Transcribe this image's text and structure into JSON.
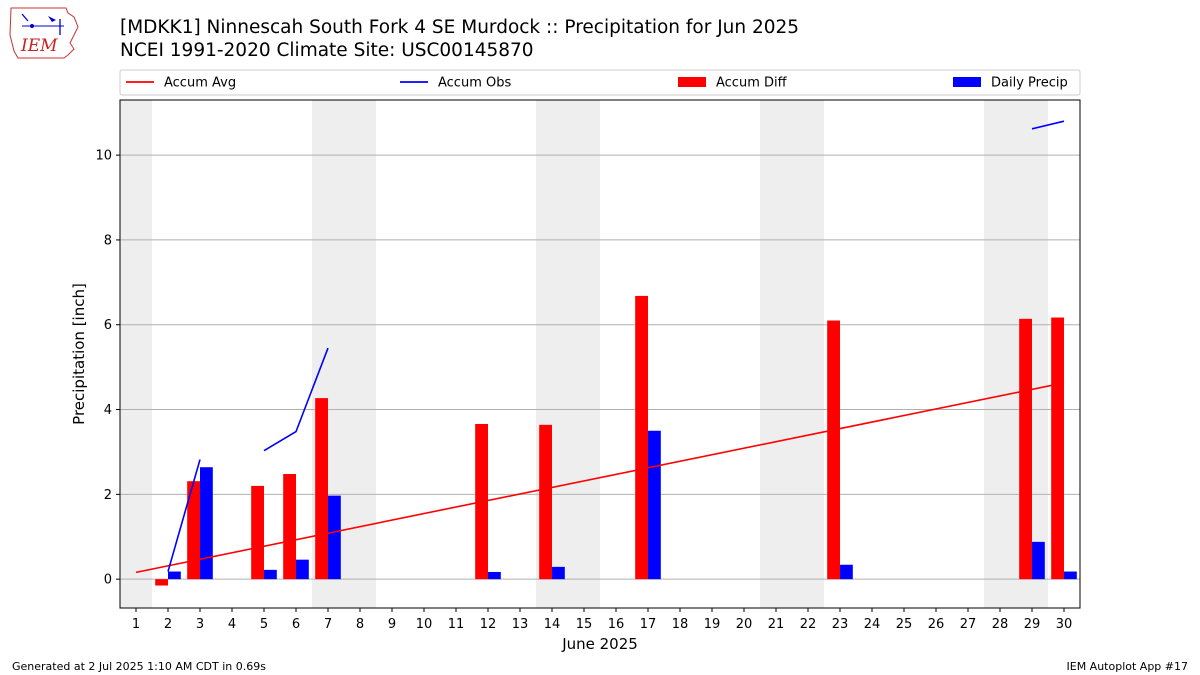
{
  "header": {
    "title_line1": "[MDKK1] Ninnescah South Fork 4 SE Murdock :: Precipitation for Jun 2025",
    "title_line2": "NCEI 1991-2020 Climate Site: USC00145870",
    "logo_text": "IEM"
  },
  "footer": {
    "left": "Generated at 2 Jul 2025 1:10 AM CDT in 0.69s",
    "right": "IEM Autoplot App #17"
  },
  "colors": {
    "avg": "#ff0000",
    "obs": "#0000ff",
    "diff": "#ff0000",
    "daily": "#0000ff",
    "weekend_band": "#eeeeee",
    "grid": "#b0b0b0"
  },
  "chart_data": {
    "type": "bar",
    "xlabel": "June 2025",
    "ylabel": "Precipitation [inch]",
    "xlim": [
      0.5,
      30.5
    ],
    "ylim": [
      -0.68,
      11.3
    ],
    "yticks": [
      0,
      2,
      4,
      6,
      8,
      10
    ],
    "days": [
      1,
      2,
      3,
      4,
      5,
      6,
      7,
      8,
      9,
      10,
      11,
      12,
      13,
      14,
      15,
      16,
      17,
      18,
      19,
      20,
      21,
      22,
      23,
      24,
      25,
      26,
      27,
      28,
      29,
      30
    ],
    "grid": "horizontal",
    "legend_position": "top",
    "weekend_bands": [
      [
        0.5,
        1.5
      ],
      [
        6.5,
        8.5
      ],
      [
        13.5,
        15.5
      ],
      [
        20.5,
        22.5
      ],
      [
        27.5,
        29.5
      ]
    ],
    "series": [
      {
        "name": "Accum Avg",
        "type": "line",
        "x": [
          1,
          30
        ],
        "values": [
          0.16,
          4.63
        ]
      },
      {
        "name": "Accum Obs",
        "type": "line",
        "segments": [
          [
            [
              2,
              0.18
            ],
            [
              3,
              2.82
            ]
          ],
          [
            [
              5,
              3.03
            ],
            [
              6,
              3.48
            ],
            [
              7,
              5.45
            ]
          ],
          [
            [
              29,
              10.62
            ],
            [
              30,
              10.8
            ]
          ]
        ]
      },
      {
        "name": "Accum Diff",
        "type": "bar",
        "x": [
          2,
          3,
          5,
          6,
          7,
          12,
          14,
          17,
          23,
          29,
          30
        ],
        "values": [
          -0.15,
          2.31,
          2.2,
          2.48,
          4.27,
          3.66,
          3.64,
          6.68,
          6.1,
          6.14,
          6.17
        ]
      },
      {
        "name": "Daily Precip",
        "type": "bar",
        "x": [
          2,
          3,
          5,
          6,
          7,
          12,
          14,
          17,
          23,
          29,
          30
        ],
        "values": [
          0.18,
          2.64,
          0.22,
          0.46,
          1.97,
          0.17,
          0.29,
          3.5,
          0.34,
          0.88,
          0.18
        ]
      }
    ]
  }
}
